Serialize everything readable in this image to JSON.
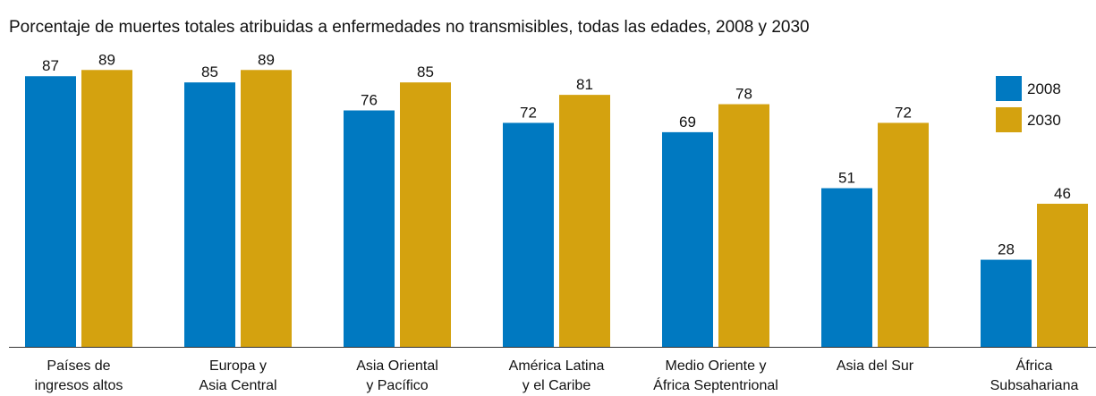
{
  "chart_data": {
    "type": "bar",
    "title": "Porcentaje de muertes totales atribuidas a enfermedades no transmisibles, todas las edades, 2008 y 2030",
    "categories": [
      "Países de\ningresos altos",
      "Europa y\nAsia Central",
      "Asia Oriental\ny Pacífico",
      "América Latina\ny el Caribe",
      "Medio Oriente y\nÁfrica Septentrional",
      "Asia del Sur",
      "África\nSubsahariana"
    ],
    "series": [
      {
        "name": "2008",
        "color": "#0079c1",
        "values": [
          87,
          85,
          76,
          72,
          69,
          51,
          28
        ]
      },
      {
        "name": "2030",
        "color": "#d4a20f",
        "values": [
          89,
          89,
          85,
          81,
          78,
          72,
          46
        ]
      }
    ],
    "ylim": [
      0,
      100
    ],
    "legend": "top-right"
  }
}
